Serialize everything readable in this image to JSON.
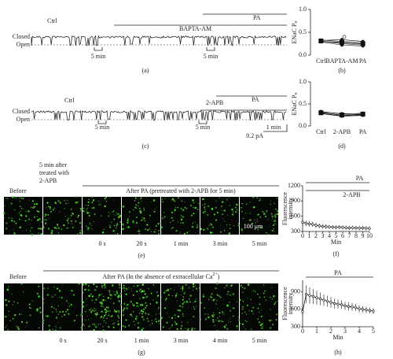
{
  "panel_a": {
    "state_closed": "Closed",
    "state_open": "Open",
    "ctrl": "Ctrl",
    "drug": "BAPTA-AM",
    "pa": "PA",
    "scale_left": "5 min",
    "scale_right": "5 min",
    "label": "(a)"
  },
  "panel_b": {
    "y_label": "ENaC P",
    "y_label_sub": "o",
    "categories": [
      "Ctrl",
      "BAPTA-AM",
      "PA"
    ],
    "ylim": [
      0,
      1
    ],
    "yticks": [
      {
        "value": 0,
        "label": "0.0"
      },
      0.5,
      {
        "value": 1,
        "label": "1.0"
      }
    ],
    "cells": [
      [
        0.3,
        0.27,
        0.24
      ],
      [
        0.33,
        0.3,
        0.28
      ],
      [
        0.31,
        0.25,
        0.22
      ],
      [
        0.29,
        0.22,
        0.2
      ],
      [
        0.32,
        0.34,
        0.3
      ],
      [
        0.3,
        0.28,
        0.25
      ]
    ],
    "outlier": 0.4,
    "means": [
      0.31,
      0.28,
      0.25
    ],
    "label": "(b)"
  },
  "panel_c": {
    "state_closed": "Closed",
    "state_open": "Open",
    "ctrl": "Ctrl",
    "drug": "2-APB",
    "pa": "PA",
    "scale_left": "5 min",
    "scale_right": "5 min",
    "scale_time": "1 min",
    "scale_current": "0.2 pA",
    "label": "(c)"
  },
  "panel_d": {
    "y_label": "ENaC P",
    "y_label_sub": "o",
    "categories": [
      "Ctrl",
      "2-APB",
      "PA"
    ],
    "ylim": [
      0,
      1
    ],
    "yticks": [
      {
        "value": 0,
        "label": "0.0"
      },
      0.5,
      {
        "value": 1,
        "label": "1.0"
      }
    ],
    "cells": [
      [
        0.3,
        0.25,
        0.27
      ],
      [
        0.33,
        0.27,
        0.29
      ],
      [
        0.28,
        0.22,
        0.24
      ],
      [
        0.31,
        0.24,
        0.26
      ],
      [
        0.32,
        0.28,
        0.28
      ],
      [
        0.29,
        0.23,
        0.25
      ]
    ],
    "means": [
      0.3,
      0.25,
      0.27
    ],
    "label": "(d)"
  },
  "panel_e": {
    "before": "Before",
    "treated": [
      "5 min after",
      "treated with",
      "2-APB"
    ],
    "title": "After PA (pretreated with 2-APB for 5 min)",
    "times": [
      "0 s",
      "20 s",
      "1 min",
      "3 min",
      "5 min"
    ],
    "scale_bar": "100 μm",
    "label": "(e)"
  },
  "panel_f": {
    "y_label": [
      "Fluorescence",
      "intensity"
    ],
    "x_label": "Min",
    "pa": "PA",
    "drug": "2-APB",
    "xlim": [
      0,
      10
    ],
    "xticks": [
      0,
      1,
      2,
      3,
      4,
      5,
      6,
      7,
      8,
      9,
      10
    ],
    "ylim": [
      300,
      1200
    ],
    "yticks": [
      300,
      600,
      900,
      1200
    ],
    "x": [
      0,
      0.5,
      1,
      1.5,
      2,
      2.5,
      3,
      3.5,
      4,
      4.5,
      5,
      5.5,
      6,
      6.5,
      7,
      7.5,
      8,
      8.5,
      9,
      9.5,
      10
    ],
    "values": [
      480,
      460,
      450,
      440,
      420,
      410,
      400,
      395,
      390,
      385,
      380,
      385,
      380,
      375,
      370,
      375,
      370,
      365,
      370,
      365,
      360
    ],
    "errors": [
      60,
      55,
      55,
      50,
      50,
      45,
      45,
      45,
      40,
      40,
      40,
      40,
      40,
      40,
      40,
      40,
      40,
      40,
      40,
      40,
      40
    ],
    "label": "(f)"
  },
  "panel_g": {
    "before": "Before",
    "title": "After PA (In the absence of extracellular Ca",
    "title_sup": "2+",
    "title_end": ")",
    "times": [
      "0 s",
      "20 s",
      "1 min",
      "3 min",
      "4 min",
      "5 min"
    ],
    "label": "(g)"
  },
  "panel_h": {
    "y_label": [
      "Fluorescence",
      "intensity"
    ],
    "x_label": "Min",
    "pa": "PA",
    "xlim": [
      0,
      5
    ],
    "xticks": [
      0,
      1,
      2,
      3,
      4,
      5
    ],
    "ylim": [
      300,
      1100
    ],
    "yticks": [
      300,
      600,
      900
    ],
    "x": [
      0,
      0.25,
      0.5,
      0.75,
      1,
      1.25,
      1.5,
      1.75,
      2,
      2.25,
      2.5,
      2.75,
      3,
      3.25,
      3.5,
      3.75,
      4,
      4.25,
      4.5,
      4.75,
      5
    ],
    "values": [
      560,
      860,
      840,
      820,
      800,
      780,
      760,
      740,
      720,
      700,
      690,
      680,
      660,
      650,
      640,
      630,
      610,
      600,
      590,
      580,
      570
    ],
    "errors": [
      60,
      150,
      140,
      130,
      120,
      110,
      100,
      95,
      90,
      85,
      80,
      75,
      70,
      70,
      65,
      60,
      60,
      55,
      55,
      50,
      50
    ],
    "label": "(h)"
  }
}
